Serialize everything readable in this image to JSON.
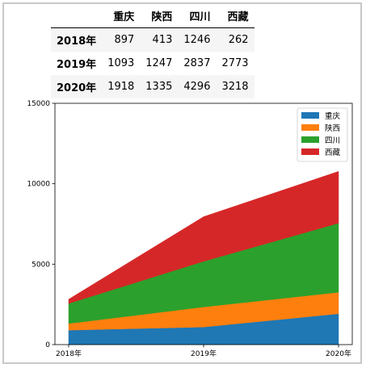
{
  "table": {
    "headers": [
      "",
      "重庆",
      "陕西",
      "四川",
      "西藏"
    ],
    "rows": [
      {
        "label": "2018年",
        "values": [
          "897",
          "413",
          "1246",
          "262"
        ]
      },
      {
        "label": "2019年",
        "values": [
          "1093",
          "1247",
          "2837",
          "2773"
        ]
      },
      {
        "label": "2020年",
        "values": [
          "1918",
          "1335",
          "4296",
          "3218"
        ]
      }
    ]
  },
  "chart_data": {
    "type": "area",
    "stacked": true,
    "categories": [
      "2018年",
      "2019年",
      "2020年"
    ],
    "series": [
      {
        "name": "重庆",
        "values": [
          897,
          1093,
          1918
        ],
        "color": "#1f77b4"
      },
      {
        "name": "陕西",
        "values": [
          413,
          1247,
          1335
        ],
        "color": "#ff7f0e"
      },
      {
        "name": "四川",
        "values": [
          1246,
          2837,
          4296
        ],
        "color": "#2ca02c"
      },
      {
        "name": "西藏",
        "values": [
          262,
          2773,
          3218
        ],
        "color": "#d62728"
      }
    ],
    "ylim": [
      0,
      15000
    ],
    "yticks": [
      "0",
      "5000",
      "10000",
      "15000"
    ],
    "legend": "top-right",
    "grid": false,
    "title": "",
    "xlabel": "",
    "ylabel": ""
  }
}
